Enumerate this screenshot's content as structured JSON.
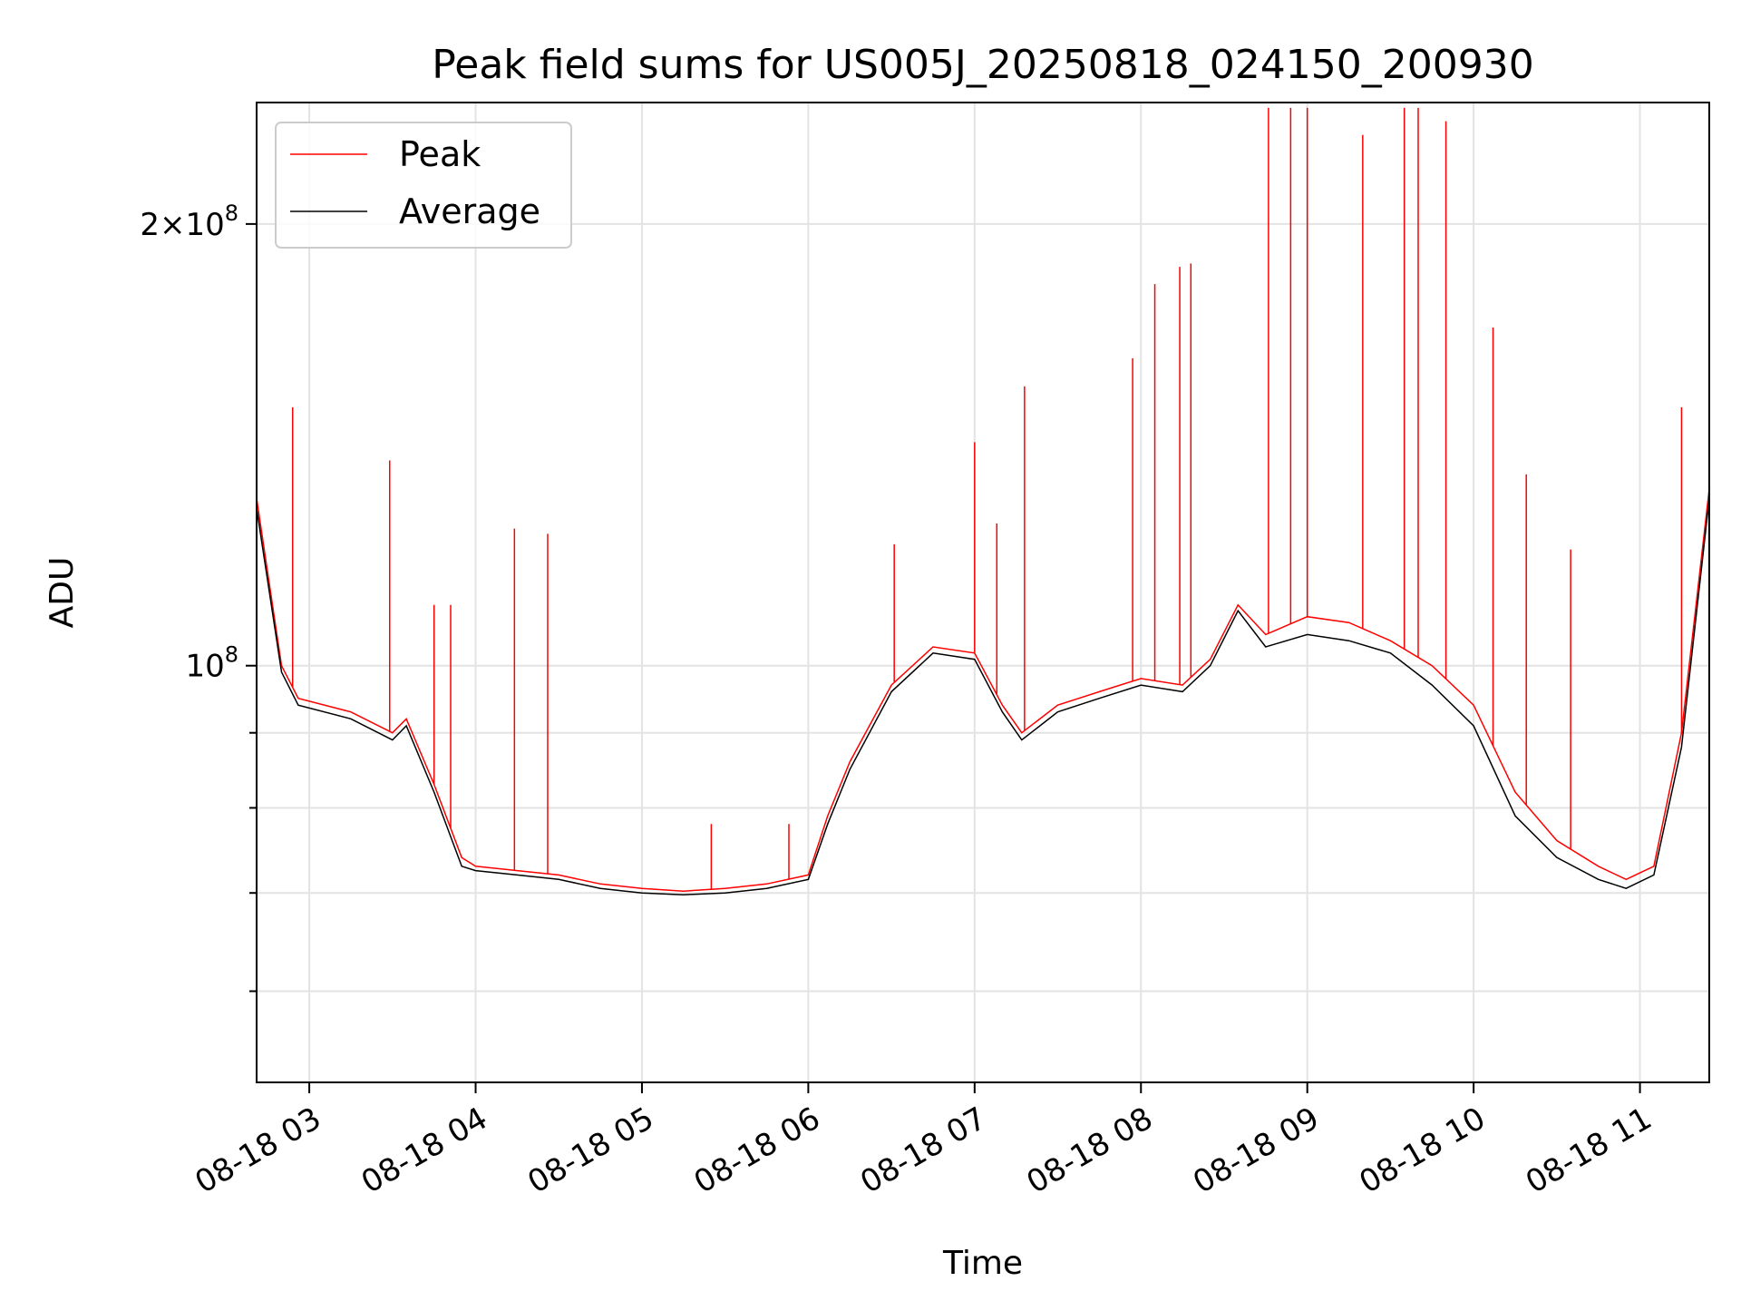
{
  "chart_data": {
    "type": "line",
    "title": "Peak field sums for US005J_20250818_024150_200930",
    "xlabel": "Time",
    "ylabel": "ADU",
    "xscale": "time",
    "yscale": "log",
    "xlim": [
      "2025-08-18 02:41",
      "2025-08-18 11:25"
    ],
    "ylim": [
      52000000,
      242000000
    ],
    "x_tick_labels": [
      "08-18 03",
      "08-18 04",
      "08-18 05",
      "08-18 06",
      "08-18 07",
      "08-18 08",
      "08-18 09",
      "08-18 10",
      "08-18 11"
    ],
    "x_tick_values": [
      "2025-08-18 03:00",
      "2025-08-18 04:00",
      "2025-08-18 05:00",
      "2025-08-18 06:00",
      "2025-08-18 07:00",
      "2025-08-18 08:00",
      "2025-08-18 09:00",
      "2025-08-18 10:00",
      "2025-08-18 11:00"
    ],
    "y_major_ticks": [
      {
        "value": 100000000,
        "mantissa": "",
        "exp": "8"
      },
      {
        "value": 200000000,
        "mantissa": "2",
        "exp": "8"
      }
    ],
    "y_minor_ticks": [
      60000000,
      70000000,
      80000000,
      90000000
    ],
    "grid": true,
    "legend_position": "top-left",
    "series": [
      {
        "name": "Peak",
        "color": "#ff0000",
        "x": [
          "2025-08-18 02:41",
          "2025-08-18 02:50",
          "2025-08-18 02:56",
          "2025-08-18 03:15",
          "2025-08-18 03:30",
          "2025-08-18 03:35",
          "2025-08-18 03:45",
          "2025-08-18 03:55",
          "2025-08-18 04:00",
          "2025-08-18 04:15",
          "2025-08-18 04:30",
          "2025-08-18 04:45",
          "2025-08-18 05:00",
          "2025-08-18 05:15",
          "2025-08-18 05:30",
          "2025-08-18 05:45",
          "2025-08-18 06:00",
          "2025-08-18 06:07",
          "2025-08-18 06:15",
          "2025-08-18 06:30",
          "2025-08-18 06:45",
          "2025-08-18 07:00",
          "2025-08-18 07:10",
          "2025-08-18 07:17",
          "2025-08-18 07:30",
          "2025-08-18 07:45",
          "2025-08-18 08:00",
          "2025-08-18 08:15",
          "2025-08-18 08:25",
          "2025-08-18 08:35",
          "2025-08-18 08:45",
          "2025-08-18 09:00",
          "2025-08-18 09:15",
          "2025-08-18 09:30",
          "2025-08-18 09:45",
          "2025-08-18 10:00",
          "2025-08-18 10:15",
          "2025-08-18 10:30",
          "2025-08-18 10:45",
          "2025-08-18 10:55",
          "2025-08-18 11:05",
          "2025-08-18 11:15",
          "2025-08-18 11:25"
        ],
        "y": [
          130000000,
          100000000,
          95000000,
          93000000,
          90000000,
          92000000,
          83000000,
          74000000,
          73000000,
          72500000,
          72000000,
          71000000,
          70500000,
          70200000,
          70500000,
          71000000,
          72000000,
          79000000,
          86000000,
          97000000,
          103000000,
          102000000,
          94000000,
          90000000,
          94000000,
          96000000,
          98000000,
          97000000,
          101000000,
          110000000,
          105000000,
          108000000,
          107000000,
          104000000,
          100000000,
          94000000,
          82000000,
          76000000,
          73000000,
          71500000,
          73000000,
          90000000,
          132000000
        ],
        "spikes": [
          {
            "x": "2025-08-18 02:54",
            "y": 150000000
          },
          {
            "x": "2025-08-18 03:29",
            "y": 138000000
          },
          {
            "x": "2025-08-18 03:45",
            "y": 110000000
          },
          {
            "x": "2025-08-18 03:51",
            "y": 110000000
          },
          {
            "x": "2025-08-18 04:14",
            "y": 124000000
          },
          {
            "x": "2025-08-18 04:26",
            "y": 123000000
          },
          {
            "x": "2025-08-18 05:25",
            "y": 78000000
          },
          {
            "x": "2025-08-18 05:53",
            "y": 78000000
          },
          {
            "x": "2025-08-18 06:31",
            "y": 121000000
          },
          {
            "x": "2025-08-18 07:00",
            "y": 142000000
          },
          {
            "x": "2025-08-18 07:18",
            "y": 155000000
          },
          {
            "x": "2025-08-18 07:08",
            "y": 125000000
          },
          {
            "x": "2025-08-18 07:57",
            "y": 162000000
          },
          {
            "x": "2025-08-18 08:05",
            "y": 182000000
          },
          {
            "x": "2025-08-18 08:14",
            "y": 187000000
          },
          {
            "x": "2025-08-18 08:18",
            "y": 188000000
          },
          {
            "x": "2025-08-18 08:46",
            "y": 240000000
          },
          {
            "x": "2025-08-18 08:54",
            "y": 240000000
          },
          {
            "x": "2025-08-18 09:00",
            "y": 240000000
          },
          {
            "x": "2025-08-18 09:20",
            "y": 230000000
          },
          {
            "x": "2025-08-18 09:35",
            "y": 240000000
          },
          {
            "x": "2025-08-18 09:40",
            "y": 240000000
          },
          {
            "x": "2025-08-18 09:50",
            "y": 235000000
          },
          {
            "x": "2025-08-18 10:07",
            "y": 170000000
          },
          {
            "x": "2025-08-18 10:19",
            "y": 135000000
          },
          {
            "x": "2025-08-18 10:35",
            "y": 120000000
          },
          {
            "x": "2025-08-18 11:15",
            "y": 150000000
          }
        ]
      },
      {
        "name": "Average",
        "color": "#000000",
        "x": [
          "2025-08-18 02:41",
          "2025-08-18 02:50",
          "2025-08-18 02:56",
          "2025-08-18 03:15",
          "2025-08-18 03:30",
          "2025-08-18 03:35",
          "2025-08-18 03:45",
          "2025-08-18 03:55",
          "2025-08-18 04:00",
          "2025-08-18 04:15",
          "2025-08-18 04:30",
          "2025-08-18 04:45",
          "2025-08-18 05:00",
          "2025-08-18 05:15",
          "2025-08-18 05:30",
          "2025-08-18 05:45",
          "2025-08-18 06:00",
          "2025-08-18 06:07",
          "2025-08-18 06:15",
          "2025-08-18 06:30",
          "2025-08-18 06:45",
          "2025-08-18 07:00",
          "2025-08-18 07:10",
          "2025-08-18 07:17",
          "2025-08-18 07:30",
          "2025-08-18 07:45",
          "2025-08-18 08:00",
          "2025-08-18 08:15",
          "2025-08-18 08:25",
          "2025-08-18 08:35",
          "2025-08-18 08:45",
          "2025-08-18 09:00",
          "2025-08-18 09:15",
          "2025-08-18 09:30",
          "2025-08-18 09:45",
          "2025-08-18 10:00",
          "2025-08-18 10:15",
          "2025-08-18 10:30",
          "2025-08-18 10:45",
          "2025-08-18 10:55",
          "2025-08-18 11:05",
          "2025-08-18 11:15",
          "2025-08-18 11:25"
        ],
        "y": [
          128000000,
          99000000,
          94000000,
          92000000,
          89000000,
          91000000,
          82000000,
          73000000,
          72500000,
          72000000,
          71500000,
          70500000,
          70000000,
          69800000,
          70000000,
          70500000,
          71500000,
          78000000,
          85000000,
          96000000,
          102000000,
          101000000,
          93000000,
          89000000,
          93000000,
          95000000,
          97000000,
          96000000,
          100000000,
          109000000,
          103000000,
          105000000,
          104000000,
          102000000,
          97000000,
          91000000,
          79000000,
          74000000,
          71500000,
          70500000,
          72000000,
          88000000,
          130000000
        ]
      }
    ]
  }
}
